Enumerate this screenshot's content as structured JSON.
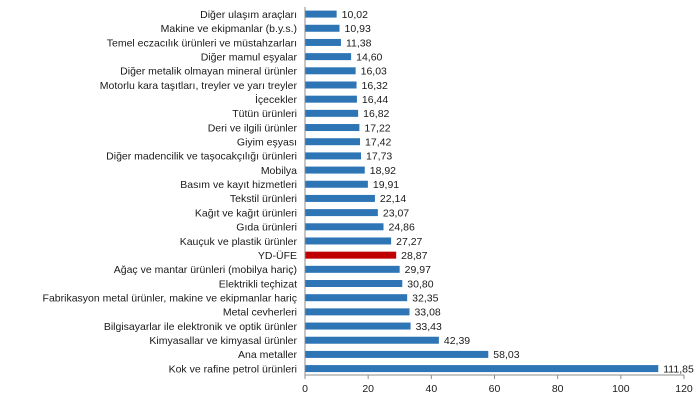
{
  "chart_data": {
    "type": "bar",
    "orientation": "horizontal",
    "title": "",
    "xlabel": "",
    "ylabel": "",
    "xlim": [
      0,
      120
    ],
    "xticks": [
      0,
      20,
      40,
      60,
      80,
      100,
      120
    ],
    "grid": false,
    "legend": "none",
    "bar_color": "#2e75b6",
    "highlight_color": "#c00000",
    "highlight_category": "YD-ÜFE",
    "categories": [
      "Diğer ulaşım araçları",
      "Makine ve ekipmanlar (b.y.s.)",
      "Temel eczacılık ürünleri ve müstahzarları",
      "Diğer mamul eşyalar",
      "Diğer metalik olmayan mineral ürünler",
      "Motorlu kara taşıtları, treyler ve yarı treyler",
      "İçecekler",
      "Tütün ürünleri",
      "Deri ve ilgili ürünler",
      "Giyim eşyası",
      "Diğer madencilik ve taşocakçılığı ürünleri",
      "Mobilya",
      "Basım ve kayıt hizmetleri",
      "Tekstil ürünleri",
      "Kağıt ve kağıt ürünleri",
      "Gıda ürünleri",
      "Kauçuk ve plastik ürünler",
      "YD-ÜFE",
      "Ağaç ve mantar ürünleri (mobilya hariç)",
      "Elektrikli teçhizat",
      "Fabrikasyon metal ürünler, makine ve ekipmanlar hariç",
      "Metal cevherleri",
      "Bilgisayarlar ile elektronik ve optik ürünler",
      "Kimyasallar ve kimyasal ürünler",
      "Ana metaller",
      "Kok ve rafine petrol ürünleri"
    ],
    "values": [
      10.02,
      10.93,
      11.38,
      14.6,
      16.03,
      16.32,
      16.44,
      16.82,
      17.22,
      17.42,
      17.73,
      18.92,
      19.91,
      22.14,
      23.07,
      24.86,
      27.27,
      28.87,
      29.97,
      30.8,
      32.35,
      33.08,
      33.43,
      42.39,
      58.03,
      111.85
    ],
    "value_labels": [
      "10,02",
      "10,93",
      "11,38",
      "14,60",
      "16,03",
      "16,32",
      "16,44",
      "16,82",
      "17,22",
      "17,42",
      "17,73",
      "18,92",
      "19,91",
      "22,14",
      "23,07",
      "24,86",
      "27,27",
      "28,87",
      "29,97",
      "30,80",
      "32,35",
      "33,08",
      "33,43",
      "42,39",
      "58,03",
      "111,85"
    ]
  }
}
